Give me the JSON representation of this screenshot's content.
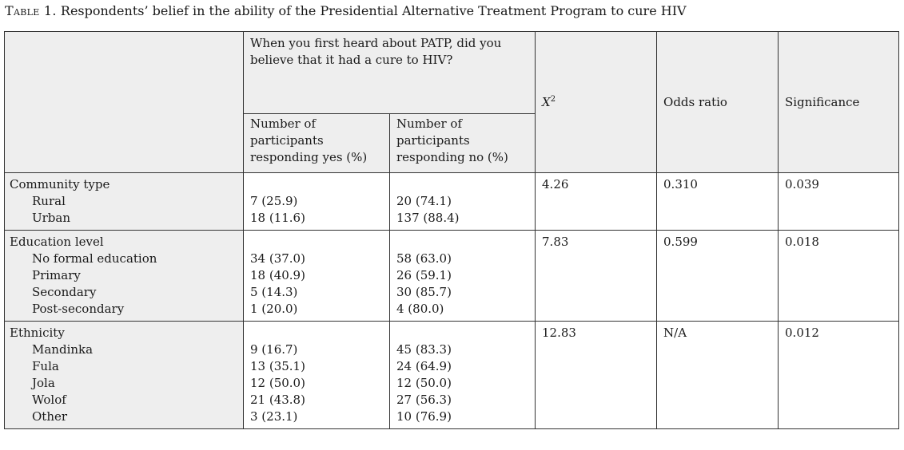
{
  "caption": {
    "label": "Table 1.",
    "text": "Respondents’ belief in the ability of the Presidential Alternative Treatment Program to cure HIV"
  },
  "header": {
    "question_line1": "When you first heard about PATP, did you",
    "question_line2": "believe that it had a cure to HIV?",
    "yes_line1": "Number of",
    "yes_line2": "participants",
    "yes_line3": "responding yes (%)",
    "no_line1": "Number of",
    "no_line2": "participants",
    "no_line3": "responding no (%)",
    "chi_symbol": "X",
    "chi_power": "2",
    "odds": "Odds ratio",
    "significance": "Significance"
  },
  "rows": [
    {
      "title": "Community type",
      "items": [
        {
          "label": "Rural",
          "yes": "7 (25.9)",
          "no": "20 (74.1)"
        },
        {
          "label": "Urban",
          "yes": "18 (11.6)",
          "no": "137 (88.4)"
        }
      ],
      "chi": "4.26",
      "odds": "0.310",
      "sig": "0.039"
    },
    {
      "title": "Education level",
      "items": [
        {
          "label": "No formal education",
          "yes": "34 (37.0)",
          "no": "58 (63.0)"
        },
        {
          "label": "Primary",
          "yes": "18 (40.9)",
          "no": "26 (59.1)"
        },
        {
          "label": "Secondary",
          "yes": "5 (14.3)",
          "no": "30 (85.7)"
        },
        {
          "label": "Post-secondary",
          "yes": "1 (20.0)",
          "no": "4 (80.0)"
        }
      ],
      "chi": "7.83",
      "odds": "0.599",
      "sig": "0.018"
    },
    {
      "title": "Ethnicity",
      "items": [
        {
          "label": "Mandinka",
          "yes": "9 (16.7)",
          "no": "45 (83.3)"
        },
        {
          "label": "Fula",
          "yes": "13 (35.1)",
          "no": "24 (64.9)"
        },
        {
          "label": "Jola",
          "yes": "12 (50.0)",
          "no": "12 (50.0)"
        },
        {
          "label": "Wolof",
          "yes": "21 (43.8)",
          "no": "27 (56.3)"
        },
        {
          "label": "Other",
          "yes": "3 (23.1)",
          "no": "10 (76.9)"
        }
      ],
      "chi": "12.83",
      "odds": "N/A",
      "sig": "0.012"
    }
  ]
}
